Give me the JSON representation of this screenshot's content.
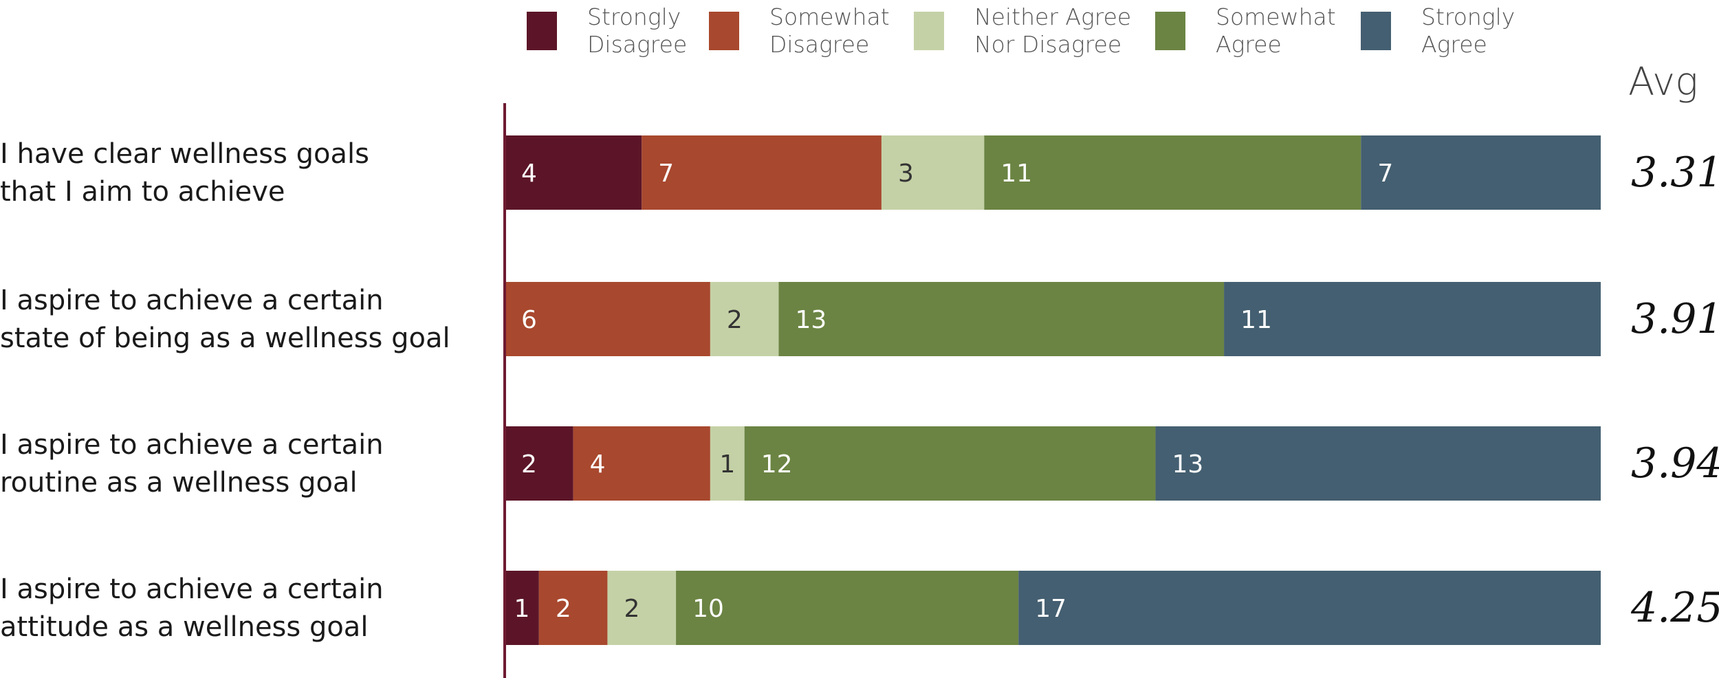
{
  "chart_data": {
    "type": "bar",
    "orientation": "horizontal",
    "stacked": true,
    "title": "",
    "xlabel": "",
    "ylabel": "",
    "grid": false,
    "legend_position": "top",
    "avg_header": "Avg",
    "series": [
      {
        "name": "Strongly Disagree",
        "name_lines": [
          "Strongly",
          "Disagree"
        ],
        "color": "#5c1528",
        "label_color": "#ffffff",
        "values": [
          4,
          0,
          2,
          1
        ]
      },
      {
        "name": "Somewhat Disagree",
        "name_lines": [
          "Somewhat",
          "Disagree"
        ],
        "color": "#a8482e",
        "label_color": "#ffffff",
        "values": [
          7,
          6,
          4,
          2
        ]
      },
      {
        "name": "Neither Agree Nor Disagree",
        "name_lines": [
          "Neither Agree",
          "Nor Disagree"
        ],
        "color": "#c4d1a6",
        "label_color": "#333333",
        "values": [
          3,
          2,
          1,
          2
        ]
      },
      {
        "name": "Somewhat Agree",
        "name_lines": [
          "Somewhat",
          "Agree"
        ],
        "color": "#6b8443",
        "label_color": "#ffffff",
        "values": [
          11,
          13,
          12,
          10
        ]
      },
      {
        "name": "Strongly Agree",
        "name_lines": [
          "Strongly",
          "Agree"
        ],
        "color": "#445f71",
        "label_color": "#ffffff",
        "values": [
          7,
          11,
          13,
          17
        ]
      }
    ],
    "categories": [
      {
        "lines": [
          "I have clear wellness goals",
          "that I aim to achieve"
        ],
        "avg": "3.31"
      },
      {
        "lines": [
          "I aspire to achieve a certain",
          "state of being as a wellness goal"
        ],
        "avg": "3.91"
      },
      {
        "lines": [
          "I aspire to achieve a certain",
          "routine as a wellness goal"
        ],
        "avg": "3.94"
      },
      {
        "lines": [
          "I aspire to achieve a certain",
          "attitude as a wellness goal"
        ],
        "avg": "4.25"
      }
    ]
  }
}
